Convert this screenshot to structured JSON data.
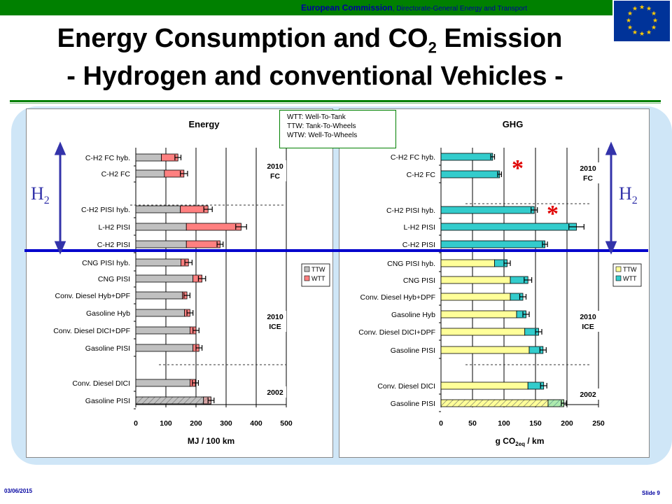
{
  "header": {
    "org_bold": "European Commission",
    "org_rest": ", Directorate-General Energy and Transport",
    "title_line1_a": "Energy Consumption and CO",
    "title_line1_sub": "2",
    "title_line1_b": " Emission",
    "title_line2": "- Hydrogen and conventional Vehicles -"
  },
  "footer": {
    "date": "03/06/2015",
    "slide": "Slide 9"
  },
  "legend_box": {
    "wtt": "WTT:  Well-To-Tank",
    "ttw": "TTW:  Tank-To-Wheels",
    "wtw": "WTW:  Well-To-Wheels"
  },
  "markers": {
    "h2_main": "H",
    "h2_sub": "2",
    "star": "*"
  },
  "chart_data": [
    {
      "type": "bar",
      "stacked": true,
      "orientation": "horizontal",
      "title": "Energy",
      "xlabel": "MJ / 100 km",
      "xlim": [
        0,
        500
      ],
      "xticks": [
        0,
        100,
        200,
        300,
        400,
        500
      ],
      "categories": [
        "C-H2 FC hyb.",
        "C-H2 FC",
        "C-H2 PISI hyb.",
        "L-H2 PISI",
        "C-H2 PISI",
        "CNG PISI hyb.",
        "CNG PISI",
        "Conv. Diesel Hyb+DPF",
        "Gasoline Hyb",
        "Conv. Diesel DICI+DPF",
        "Gasoline PISI",
        "Conv. Diesel DICI",
        "Gasoline PISI"
      ],
      "series": [
        {
          "name": "TTW",
          "color": "#c0c0c0",
          "values": [
            85,
            95,
            148,
            168,
            168,
            150,
            190,
            155,
            162,
            180,
            190,
            180,
            225
          ]
        },
        {
          "name": "WTT",
          "color": "#ff8080",
          "values": [
            55,
            65,
            92,
            182,
            112,
            25,
            30,
            15,
            18,
            20,
            20,
            18,
            25
          ]
        }
      ],
      "error": [
        10,
        12,
        14,
        18,
        10,
        12,
        12,
        10,
        10,
        10,
        10,
        10,
        10
      ],
      "hatched_last": true,
      "groups": [
        "2010 FC",
        "2010 ICE",
        "2002"
      ],
      "group_labels": [
        [
          "2010",
          "FC"
        ],
        [
          "2010",
          "ICE"
        ],
        [
          "2002",
          ""
        ]
      ],
      "legend_labels": [
        "TTW",
        "WTT"
      ],
      "legend": "right"
    },
    {
      "type": "bar",
      "stacked": true,
      "orientation": "horizontal",
      "title": "GHG",
      "xlabel_parts": [
        "g CO",
        "2eq",
        " /  km"
      ],
      "xlim": [
        0,
        250
      ],
      "xticks": [
        0,
        50,
        100,
        150,
        200,
        250
      ],
      "categories": [
        "C-H2 FC hyb.",
        "C-H2 FC",
        "C-H2 PISI hyb.",
        "L-H2 PISI",
        "C-H2 PISI",
        "CNG PISI hyb.",
        "CNG PISI",
        "Conv. Diesel Hyb+DPF",
        "Gasoline Hyb",
        "Conv. Diesel DICI+DPF",
        "Gasoline PISI",
        "Conv. Diesel DICI",
        "Gasoline PISI"
      ],
      "series": [
        {
          "name": "TTW",
          "color": "#ffff99",
          "values": [
            0,
            0,
            0,
            0,
            0,
            85,
            110,
            110,
            120,
            133,
            140,
            138,
            170
          ]
        },
        {
          "name": "WTT",
          "color": "#33cccc",
          "values": [
            82,
            93,
            148,
            215,
            165,
            20,
            28,
            20,
            15,
            22,
            22,
            25,
            25
          ]
        }
      ],
      "error": [
        3,
        3,
        5,
        12,
        4,
        5,
        6,
        5,
        5,
        5,
        5,
        5,
        4
      ],
      "hatched_last": true,
      "group_labels": [
        [
          "2010",
          "FC"
        ],
        [
          "2010",
          "ICE"
        ],
        [
          "2002",
          ""
        ]
      ],
      "legend_labels": [
        "TTW",
        "WTT"
      ],
      "legend": "right"
    }
  ]
}
